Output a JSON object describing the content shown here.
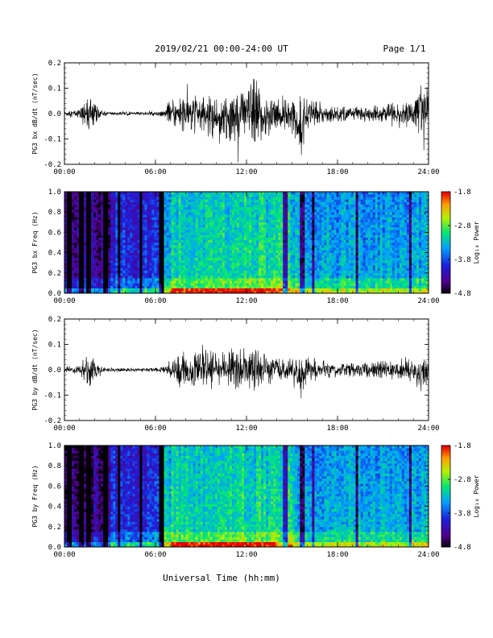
{
  "header": {
    "title": "2019/02/21  00:00-24:00 UT",
    "page": "Page 1/1"
  },
  "xlabel": "Universal Time (hh:mm)",
  "chart_data": [
    {
      "type": "line",
      "title": "",
      "ylabel": "PG3 bx dB/dt (nT/sec)",
      "xlim": [
        0,
        24
      ],
      "ylim": [
        -0.2,
        0.2
      ],
      "x_ticks": [
        "00:00",
        "06:00",
        "12:00",
        "18:00",
        "24:00"
      ],
      "y_ticks": [
        "-0.2",
        "-0.1",
        "0.0",
        "0.1",
        "0.2"
      ],
      "envelope": {
        "x_hours": [
          0,
          1,
          1.5,
          2,
          2.5,
          3,
          5,
          6.5,
          7,
          8,
          9,
          10,
          11,
          12,
          12.5,
          13,
          14,
          15,
          15.5,
          16,
          17,
          18,
          20,
          22,
          23,
          23.5,
          24
        ],
        "upper": [
          0.01,
          0.02,
          0.06,
          0.05,
          0.01,
          0.008,
          0.006,
          0.01,
          0.05,
          0.08,
          0.07,
          0.06,
          0.08,
          0.1,
          0.15,
          0.09,
          0.06,
          0.05,
          0.06,
          0.07,
          0.04,
          0.03,
          0.03,
          0.04,
          0.05,
          0.13,
          0.08
        ],
        "lower": [
          -0.01,
          -0.02,
          -0.07,
          -0.05,
          -0.01,
          -0.008,
          -0.006,
          -0.01,
          -0.05,
          -0.08,
          -0.08,
          -0.09,
          -0.12,
          -0.1,
          -0.14,
          -0.11,
          -0.07,
          -0.06,
          -0.15,
          -0.07,
          -0.04,
          -0.03,
          -0.03,
          -0.04,
          -0.05,
          -0.09,
          -0.06
        ]
      }
    },
    {
      "type": "heatmap",
      "title": "",
      "ylabel": "PG3 bx Freq (Hz)",
      "xlim": [
        0,
        24
      ],
      "ylim": [
        0,
        1
      ],
      "x_ticks": [
        "00:00",
        "06:00",
        "12:00",
        "18:00",
        "24:00"
      ],
      "y_ticks": [
        "0.0",
        "0.2",
        "0.4",
        "0.6",
        "0.8",
        "1.0"
      ],
      "colorbar": {
        "label": "Log₁₀ Power",
        "ticks": [
          "-1.8",
          "-2.8",
          "-3.8",
          "-4.8"
        ],
        "range": [
          -4.8,
          -1.8
        ]
      }
    },
    {
      "type": "line",
      "title": "",
      "ylabel": "PG3 by dB/dt (nT/sec)",
      "xlim": [
        0,
        24
      ],
      "ylim": [
        -0.2,
        0.2
      ],
      "x_ticks": [
        "00:00",
        "06:00",
        "12:00",
        "18:00",
        "24:00"
      ],
      "y_ticks": [
        "-0.2",
        "-0.1",
        "0.0",
        "0.1",
        "0.2"
      ],
      "envelope": {
        "x_hours": [
          0,
          1,
          1.5,
          2,
          2.5,
          3,
          5,
          6.5,
          7,
          8,
          9,
          10,
          11,
          12,
          12.5,
          13,
          14,
          15,
          15.5,
          16,
          17,
          18,
          20,
          22,
          23,
          23.5,
          24
        ],
        "upper": [
          0.01,
          0.02,
          0.07,
          0.04,
          0.01,
          0.008,
          0.006,
          0.01,
          0.04,
          0.06,
          0.07,
          0.07,
          0.09,
          0.08,
          0.1,
          0.07,
          0.05,
          0.04,
          0.05,
          0.05,
          0.03,
          0.03,
          0.03,
          0.04,
          0.04,
          0.05,
          0.04
        ],
        "lower": [
          -0.01,
          -0.02,
          -0.08,
          -0.04,
          -0.01,
          -0.008,
          -0.006,
          -0.01,
          -0.05,
          -0.07,
          -0.06,
          -0.06,
          -0.08,
          -0.07,
          -0.09,
          -0.06,
          -0.05,
          -0.04,
          -0.13,
          -0.05,
          -0.03,
          -0.03,
          -0.03,
          -0.04,
          -0.04,
          -0.1,
          -0.05
        ]
      }
    },
    {
      "type": "heatmap",
      "title": "",
      "ylabel": "PG3 by Freq (Hz)",
      "xlim": [
        0,
        24
      ],
      "ylim": [
        0,
        1
      ],
      "x_ticks": [
        "00:00",
        "06:00",
        "12:00",
        "18:00",
        "24:00"
      ],
      "y_ticks": [
        "0.0",
        "0.2",
        "0.4",
        "0.6",
        "0.8",
        "1.0"
      ],
      "colorbar": {
        "label": "Log₁₀ Power",
        "ticks": [
          "-1.8",
          "-2.8",
          "-3.8",
          "-4.8"
        ],
        "range": [
          -4.8,
          -1.8
        ]
      }
    }
  ]
}
